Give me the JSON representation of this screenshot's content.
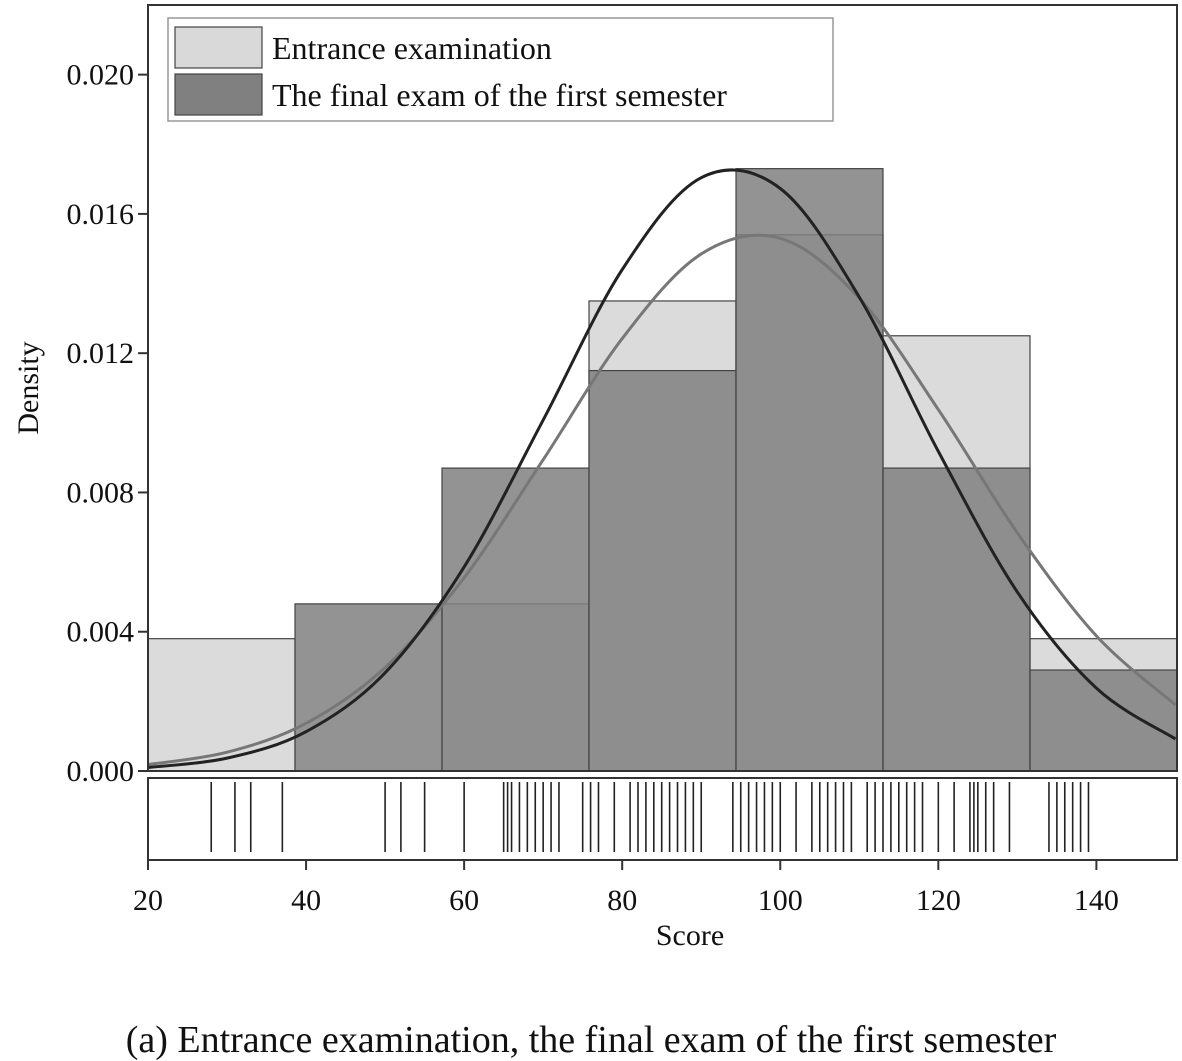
{
  "chart_data": {
    "type": "histogram",
    "caption": "(a) Entrance examination, the final exam of the first semester",
    "x_label": "Score",
    "y_label": "Density",
    "bins": [
      20,
      38.6,
      57.2,
      75.8,
      94.4,
      113,
      131.6,
      150.2
    ],
    "series": [
      {
        "name": "Entrance examination",
        "color": "#d9d9d9",
        "values": [
          0.0038,
          0,
          0.0048,
          0.0135,
          0.0154,
          0.0125,
          0.0038
        ]
      },
      {
        "name": "The final exam of the first semester",
        "color": "#808080",
        "values": [
          0,
          0.0048,
          0.0087,
          0.0115,
          0.0173,
          0.0087,
          0.0029
        ]
      }
    ],
    "curves": [
      {
        "color": "#777777",
        "x": [
          20,
          30,
          40,
          50,
          60,
          70,
          80,
          90,
          100,
          110,
          120,
          130,
          140,
          150
        ],
        "values": [
          0.000185,
          0.00054,
          0.00137,
          0.00297,
          0.00555,
          0.00894,
          0.01242,
          0.01485,
          0.0153,
          0.01358,
          0.01038,
          0.00684,
          0.00388,
          0.0019
        ]
      },
      {
        "color": "#222222",
        "x": [
          20,
          30,
          40,
          50,
          60,
          70,
          80,
          90,
          100,
          110,
          120,
          130,
          140,
          150
        ],
        "values": [
          0.000102,
          0.00037,
          0.00113,
          0.00282,
          0.00586,
          0.01008,
          0.0144,
          0.01704,
          0.01673,
          0.01361,
          0.00918,
          0.00514,
          0.00238,
          0.00092
        ]
      }
    ],
    "rug": [
      28,
      31,
      33,
      37,
      50,
      52,
      55,
      60,
      65,
      65.5,
      66,
      67,
      68,
      69,
      70,
      71,
      72,
      75,
      76,
      77,
      79,
      81,
      82,
      83,
      84,
      85,
      86,
      87,
      88,
      89,
      90,
      94,
      95,
      96,
      97,
      98,
      99,
      100,
      102,
      104,
      105,
      106,
      107,
      108,
      109,
      111,
      112,
      113,
      114,
      115,
      116,
      117,
      118,
      120,
      122,
      124,
      124.5,
      125,
      126,
      127,
      129,
      134,
      135,
      136,
      137,
      138,
      139
    ],
    "xlim": [
      20,
      150.2
    ],
    "ylim": [
      0,
      0.022
    ],
    "xticks": [
      20,
      40,
      60,
      80,
      100,
      120,
      140
    ],
    "yticks": [
      {
        "value": 0,
        "label": "0.000"
      },
      {
        "value": 0.004,
        "label": "0.004"
      },
      {
        "value": 0.008,
        "label": "0.008"
      },
      {
        "value": 0.012,
        "label": "0.012"
      },
      {
        "value": 0.016,
        "label": "0.016"
      },
      {
        "value": 0.02,
        "label": "0.020"
      }
    ],
    "legend": "upper left"
  }
}
